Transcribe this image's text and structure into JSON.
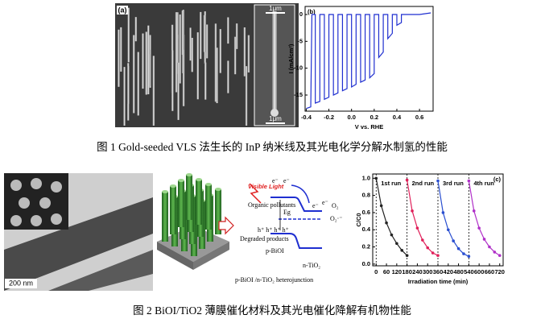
{
  "captions": [
    "图 1 Gold-seeded VLS 法生长的 InP 纳米线及其光电化学分解水制氢的性能",
    "图 2 BiOI/TiO2 薄膜催化材料及其光电催化降解有机物性能"
  ],
  "image_labels": [
    "(a)",
    "1μm",
    "1μm",
    "200 nm"
  ],
  "diagram": {
    "labels": [
      "Visible Light",
      "e⁻",
      "e⁻",
      "Organic pollutants",
      "Eg",
      "h⁺ h⁺ h⁺ h⁺",
      "Degraded products",
      "p-BiOI",
      "e⁻",
      "e⁻",
      "O₂",
      "O₂·⁻",
      "n-TiO₂",
      "p-BiOI /n-TiO₂ heterojunction"
    ]
  },
  "chart_data": [
    {
      "type": "line",
      "panel_label": "(b)",
      "ylabel": "I (mA/cm²)",
      "xlabel": "V vs. RHE",
      "x": [
        -0.4,
        -0.36,
        -0.35,
        -0.32,
        -0.32,
        -0.28,
        -0.28,
        -0.24,
        -0.24,
        -0.2,
        -0.2,
        -0.16,
        -0.16,
        -0.12,
        -0.12,
        -0.08,
        -0.08,
        -0.04,
        -0.04,
        0.0,
        0.0,
        0.04,
        0.04,
        0.08,
        0.08,
        0.12,
        0.12,
        0.16,
        0.16,
        0.2,
        0.2,
        0.24,
        0.24,
        0.28,
        0.28,
        0.32,
        0.32,
        0.36,
        0.36,
        0.4,
        0.4,
        0.44,
        0.44,
        0.6,
        0.7
      ],
      "series": [
        {
          "color": "#1f2fd0",
          "values": [
            -17.5,
            -17.2,
            0,
            0,
            -16.5,
            -16.2,
            0,
            0,
            -15.8,
            -15.4,
            0,
            0,
            -15.0,
            -14.6,
            0,
            0,
            -14.2,
            -13.8,
            0,
            0,
            -13.5,
            -13.0,
            0,
            0,
            -12.6,
            -12.2,
            0,
            0,
            -11.8,
            -11.0,
            0,
            0,
            -8.0,
            -7.0,
            0,
            0,
            -4.5,
            -3.5,
            0,
            0,
            -2.0,
            -1.5,
            0,
            0,
            0.3
          ]
        }
      ],
      "xlim": [
        -0.41,
        0.72
      ],
      "ylim": [
        -18,
        1.5
      ],
      "xticks": [
        -0.4,
        -0.2,
        {
          "value": 0,
          "label": "0.0"
        },
        0.2,
        0.4,
        0.6
      ],
      "yticks": [
        0,
        -5,
        -10,
        -15
      ]
    },
    {
      "type": "line",
      "panel_label": "(c)",
      "ylabel": "C/C0",
      "xlabel": "Irradiation time (min)",
      "series": [
        {
          "name": "1st run",
          "color": "#222222",
          "x": [
            0,
            30,
            60,
            90,
            120,
            150,
            180
          ],
          "values": [
            1.0,
            0.68,
            0.48,
            0.34,
            0.24,
            0.16,
            0.1
          ]
        },
        {
          "name": "2nd run",
          "color": "#e0205a",
          "x": [
            180,
            210,
            240,
            270,
            300,
            330,
            360
          ],
          "values": [
            0.98,
            0.62,
            0.42,
            0.28,
            0.19,
            0.13,
            0.1
          ]
        },
        {
          "name": "3rd run",
          "color": "#2a4fd0",
          "x": [
            360,
            390,
            420,
            450,
            480,
            510,
            540
          ],
          "values": [
            0.97,
            0.6,
            0.4,
            0.27,
            0.18,
            0.12,
            0.09
          ]
        },
        {
          "name": "4th run",
          "color": "#b030c8",
          "x": [
            540,
            570,
            600,
            630,
            660,
            690,
            720
          ],
          "values": [
            0.97,
            0.62,
            0.42,
            0.29,
            0.2,
            0.14,
            0.1
          ]
        }
      ],
      "dividers": [
        0,
        180,
        360,
        540
      ],
      "xlim": [
        -20,
        740
      ],
      "ylim": [
        -0.02,
        1.05
      ],
      "xticks": [
        0,
        60,
        120,
        180,
        240,
        300,
        360,
        420,
        480,
        540,
        600,
        660,
        720
      ],
      "yticks": [
        {
          "value": 0,
          "label": "0.0"
        },
        0.2,
        0.4,
        0.6,
        0.8,
        {
          "value": 1,
          "label": "1.0"
        }
      ]
    }
  ]
}
